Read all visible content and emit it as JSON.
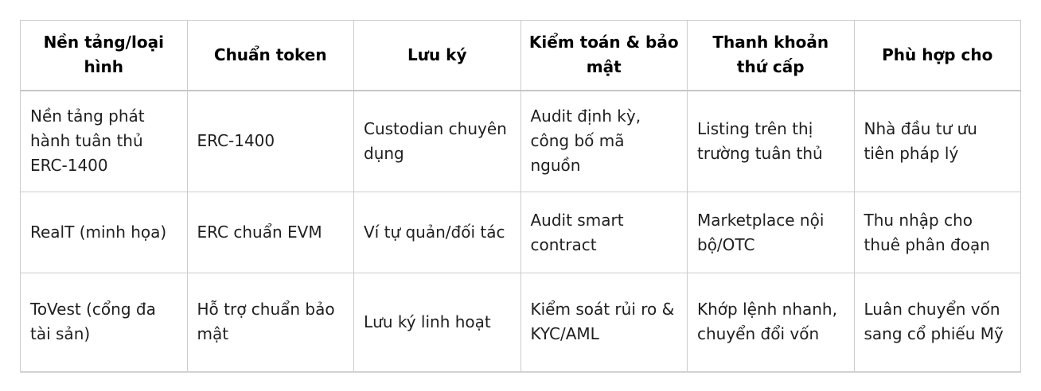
{
  "table": {
    "headers": [
      "Nền tảng/loại hình",
      "Chuẩn token",
      "Lưu ký",
      "Kiểm toán & bảo mật",
      "Thanh khoản thứ cấp",
      "Phù hợp cho"
    ],
    "rows": [
      [
        "Nền tảng phát hành tuân thủ ERC-1400",
        "ERC-1400",
        "Custodian chuyên dụng",
        "Audit định kỳ, công bố mã nguồn",
        "Listing trên thị trường tuân thủ",
        "Nhà đầu tư ưu tiên pháp lý"
      ],
      [
        "RealT (minh họa)",
        "ERC chuẩn EVM",
        "Ví tự quản/đối tác",
        "Audit smart contract",
        "Marketplace nội bộ/OTC",
        "Thu nhập cho thuê phân đoạn"
      ],
      [
        "ToVest (cổng đa tài sản)",
        "Hỗ trợ chuẩn bảo mật",
        "Lưu ký linh hoạt",
        "Kiểm soát rủi ro & KYC/AML",
        "Khớp lệnh nhanh, chuyển đổi vốn",
        "Luân chuyển vốn sang cổ phiếu Mỹ"
      ]
    ]
  },
  "colors": {
    "background": "#ffffff",
    "border": "#cccccc",
    "header_text": "#000000",
    "body_text": "#202020"
  }
}
